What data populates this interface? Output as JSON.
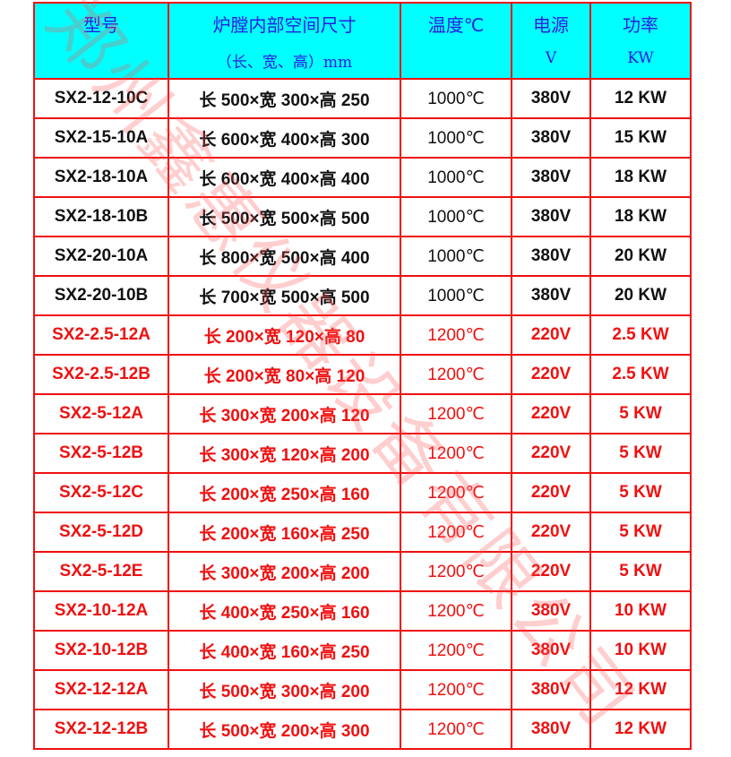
{
  "header": {
    "model": "型号",
    "size": "炉膛内部空间尺寸",
    "size_sub": "（长、宽、高）mm",
    "temp": "温度℃",
    "power_src": "电源",
    "power_src_sub": "V",
    "power": "功率",
    "power_sub": "KW"
  },
  "watermark": "郑州鑫惠仪器设备有限公司",
  "colors": {
    "header_bg": "#00ffff",
    "header_text": "#2a1ce0",
    "border": "#f01010",
    "red_text": "#f01010"
  },
  "rows": [
    {
      "model": "SX2-12-10C",
      "size": "长 500×宽 300×高 250",
      "temp": "1000℃",
      "voltage": "380V",
      "power": "12 KW",
      "color": "black"
    },
    {
      "model": "SX2-15-10A",
      "size": "长 600×宽 400×高 300",
      "temp": "1000℃",
      "voltage": "380V",
      "power": "15 KW",
      "color": "black"
    },
    {
      "model": "SX2-18-10A",
      "size": "长 600×宽 400×高 400",
      "temp": "1000℃",
      "voltage": "380V",
      "power": "18 KW",
      "color": "black"
    },
    {
      "model": "SX2-18-10B",
      "size": "长 500×宽 500×高 500",
      "temp": "1000℃",
      "voltage": "380V",
      "power": "18 KW",
      "color": "black"
    },
    {
      "model": "SX2-20-10A",
      "size": "长 800×宽 500×高 400",
      "temp": "1000℃",
      "voltage": "380V",
      "power": "20 KW",
      "color": "black"
    },
    {
      "model": "SX2-20-10B",
      "size": "长 700×宽 500×高 500",
      "temp": "1000℃",
      "voltage": "380V",
      "power": "20 KW",
      "color": "black"
    },
    {
      "model": "SX2-2.5-12A",
      "size": "长 200×宽 120×高 80",
      "temp": "1200℃",
      "voltage": "220V",
      "power": "2.5 KW",
      "color": "red"
    },
    {
      "model": "SX2-2.5-12B",
      "size": "长 200×宽 80×高 120",
      "temp": "1200℃",
      "voltage": "220V",
      "power": "2.5 KW",
      "color": "red"
    },
    {
      "model": "SX2-5-12A",
      "size": "长 300×宽 200×高 120",
      "temp": "1200℃",
      "voltage": "220V",
      "power": "5 KW",
      "color": "red"
    },
    {
      "model": "SX2-5-12B",
      "size": "长 300×宽 120×高 200",
      "temp": "1200℃",
      "voltage": "220V",
      "power": "5 KW",
      "color": "red"
    },
    {
      "model": "SX2-5-12C",
      "size": "长 200×宽 250×高 160",
      "temp": "1200℃",
      "voltage": "220V",
      "power": "5 KW",
      "color": "red"
    },
    {
      "model": "SX2-5-12D",
      "size": "长 200×宽 160×高 250",
      "temp": "1200℃",
      "voltage": "220V",
      "power": "5 KW",
      "color": "red"
    },
    {
      "model": "SX2-5-12E",
      "size": "长 300×宽 200×高 200",
      "temp": "1200℃",
      "voltage": "220V",
      "power": "5 KW",
      "color": "red"
    },
    {
      "model": "SX2-10-12A",
      "size": "长 400×宽 250×高 160",
      "temp": "1200℃",
      "voltage": "380V",
      "power": "10 KW",
      "color": "red"
    },
    {
      "model": "SX2-10-12B",
      "size": "长 400×宽 160×高 250",
      "temp": "1200℃",
      "voltage": "380V",
      "power": "10 KW",
      "color": "red"
    },
    {
      "model": "SX2-12-12A",
      "size": "长 500×宽 300×高 200",
      "temp": "1200℃",
      "voltage": "380V",
      "power": "12 KW",
      "color": "red"
    },
    {
      "model": "SX2-12-12B",
      "size": "长 500×宽 200×高 300",
      "temp": "1200℃",
      "voltage": "380V",
      "power": "12 KW",
      "color": "red"
    }
  ]
}
